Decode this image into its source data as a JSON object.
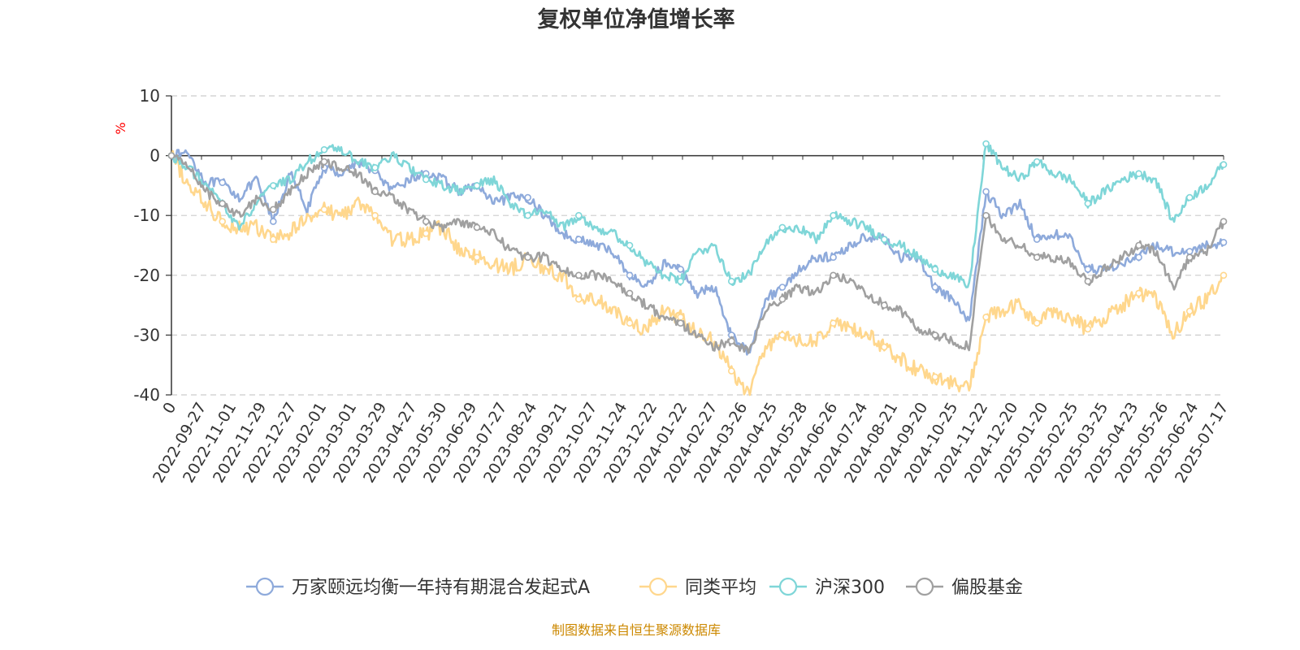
{
  "chart_data": {
    "type": "line",
    "title": "复权单位净值增长率",
    "ylabel": "%",
    "ylim": [
      -40,
      10
    ],
    "yticks": [
      10,
      0,
      -10,
      -20,
      -30,
      -40
    ],
    "x_tick_labels": [
      "0",
      "2022-09-27",
      "2022-11-01",
      "2022-11-29",
      "2022-12-27",
      "2023-02-01",
      "2023-03-01",
      "2023-03-29",
      "2023-04-27",
      "2023-05-30",
      "2023-06-29",
      "2023-07-27",
      "2023-08-24",
      "2023-09-21",
      "2023-10-27",
      "2023-11-24",
      "2023-12-22",
      "2024-01-22",
      "2024-02-27",
      "2024-03-26",
      "2024-04-25",
      "2024-05-28",
      "2024-06-26",
      "2024-07-24",
      "2024-08-21",
      "2024-09-20",
      "2024-10-25",
      "2024-11-22",
      "2024-12-20",
      "2025-01-20",
      "2025-02-25",
      "2025-03-25",
      "2025-04-23",
      "2025-05-26",
      "2025-06-24",
      "2025-07-17"
    ],
    "grid": "horizontal-dashed",
    "legend_position": "bottom",
    "series": [
      {
        "name": "万家颐远均衡一年持有期混合发起式A",
        "color": "#8eaadb",
        "values": [
          0,
          0.5,
          -4.5,
          -4.5,
          -7.0,
          -4.0,
          -11.0,
          -3.0,
          -9.0,
          -2.0,
          -3.0,
          -1.0,
          -2.5,
          -6.0,
          -4.0,
          -3.0,
          -4.0,
          -6.0,
          -5.0,
          -8.0,
          -7.0,
          -7.0,
          -10.0,
          -13.0,
          -14.0,
          -15.0,
          -16.0,
          -20.0,
          -22.0,
          -18.0,
          -19.0,
          -23.0,
          -22.0,
          -30.0,
          -33.0,
          -24.0,
          -22.0,
          -19.0,
          -17.0,
          -17.0,
          -15.0,
          -13.5,
          -14.0,
          -17.0,
          -17.0,
          -22.0,
          -24.0,
          -28.0,
          -6.0,
          -10.0,
          -8.0,
          -14.0,
          -13.0,
          -14.0,
          -19.0,
          -19.0,
          -18.0,
          -17.0,
          -15.0,
          -16.0,
          -16.0,
          -15.0,
          -14.5
        ]
      },
      {
        "name": "同类平均",
        "color": "#ffd78d",
        "values": [
          0,
          -5.0,
          -8.0,
          -11.0,
          -12.0,
          -12.0,
          -14.0,
          -13.0,
          -10.0,
          -9.0,
          -10.0,
          -8.0,
          -10.0,
          -14.0,
          -14.0,
          -13.0,
          -12.0,
          -16.0,
          -17.0,
          -18.0,
          -19.0,
          -17.0,
          -19.0,
          -20.0,
          -24.0,
          -24.0,
          -26.0,
          -28.0,
          -29.0,
          -26.0,
          -27.0,
          -30.0,
          -31.0,
          -36.0,
          -40.0,
          -32.0,
          -30.0,
          -31.0,
          -31.0,
          -28.0,
          -29.0,
          -30.0,
          -32.0,
          -34.0,
          -36.0,
          -37.0,
          -38.0,
          -39.0,
          -27.0,
          -26.0,
          -25.0,
          -28.0,
          -26.0,
          -27.0,
          -29.0,
          -27.0,
          -25.0,
          -23.0,
          -24.0,
          -30.0,
          -26.0,
          -24.0,
          -20.0
        ]
      },
      {
        "name": "沪深300",
        "color": "#7fd6d8",
        "values": [
          0,
          -2.0,
          -5.0,
          -8.0,
          -12.0,
          -8.0,
          -5.0,
          -4.0,
          -1.0,
          1.0,
          1.0,
          -1.0,
          -2.0,
          0.0,
          -2.0,
          -4.0,
          -5.0,
          -6.0,
          -5.0,
          -4.0,
          -8.0,
          -10.0,
          -9.0,
          -12.0,
          -10.0,
          -12.0,
          -13.0,
          -15.0,
          -18.0,
          -20.0,
          -21.0,
          -16.0,
          -15.0,
          -21.0,
          -20.0,
          -15.0,
          -12.0,
          -12.0,
          -14.0,
          -10.0,
          -11.0,
          -12.0,
          -14.0,
          -15.0,
          -17.0,
          -19.0,
          -20.0,
          -22.0,
          2.0,
          -2.0,
          -4.0,
          -1.0,
          -3.0,
          -4.0,
          -8.0,
          -6.0,
          -4.0,
          -3.0,
          -4.0,
          -11.0,
          -7.0,
          -5.0,
          -1.5
        ]
      },
      {
        "name": "偏股基金",
        "color": "#a0a0a0",
        "values": [
          0,
          -1.5,
          -6.0,
          -8.0,
          -10.0,
          -7.0,
          -9.0,
          -6.0,
          -3.0,
          -1.0,
          -2.0,
          -3.0,
          -6.0,
          -7.0,
          -9.0,
          -11.0,
          -12.0,
          -11.0,
          -12.0,
          -13.0,
          -16.0,
          -17.0,
          -17.0,
          -19.0,
          -20.0,
          -20.0,
          -21.0,
          -23.0,
          -25.0,
          -27.0,
          -28.0,
          -30.0,
          -32.0,
          -31.0,
          -33.0,
          -26.0,
          -24.0,
          -22.0,
          -23.0,
          -20.0,
          -21.0,
          -23.0,
          -25.0,
          -26.0,
          -29.0,
          -30.0,
          -31.0,
          -32.0,
          -10.0,
          -14.0,
          -15.0,
          -17.0,
          -17.0,
          -18.0,
          -21.0,
          -19.0,
          -17.0,
          -15.0,
          -16.0,
          -22.0,
          -17.0,
          -16.0,
          -11.0
        ]
      }
    ]
  },
  "source_note": "制图数据来自恒生聚源数据库",
  "colors": {
    "title": "#333333",
    "axis": "#333333",
    "grid": "#cccccc",
    "ylabel": "#ff0000",
    "source": "#cc8800"
  }
}
